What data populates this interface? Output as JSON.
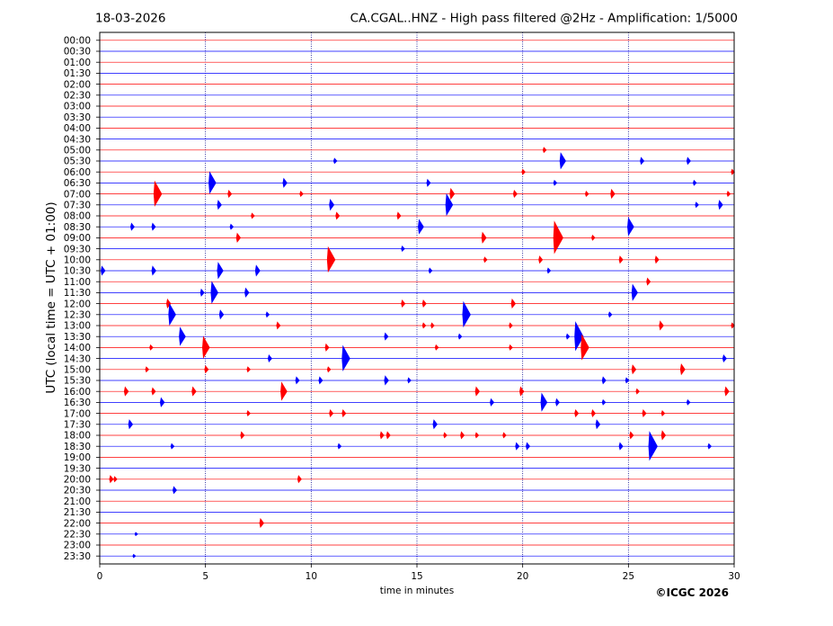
{
  "header": {
    "date": "18-03-2026",
    "station_title": "CA.CGAL..HNZ - High pass filtered @2Hz - Amplification: 1/5000"
  },
  "footer": {
    "copyright": "©ICGC 2026"
  },
  "chart_data": {
    "type": "line",
    "title": "CA.CGAL..HNZ - High pass filtered @2Hz - Amplification: 1/5000",
    "date": "18-03-2026",
    "xlabel": "time in minutes",
    "ylabel": "UTC (local time = UTC + 01:00)",
    "xlim": [
      0,
      30
    ],
    "x_ticks": [
      0,
      5,
      10,
      15,
      20,
      25,
      30
    ],
    "vertical_gridlines_at_minutes": [
      5,
      10,
      15,
      20,
      25
    ],
    "row_labels": [
      "00:00",
      "00:30",
      "01:00",
      "01:30",
      "02:00",
      "02:30",
      "03:00",
      "03:30",
      "04:00",
      "04:30",
      "05:00",
      "05:30",
      "06:00",
      "06:30",
      "07:00",
      "07:30",
      "08:00",
      "08:30",
      "09:00",
      "09:30",
      "10:00",
      "10:30",
      "11:00",
      "11:30",
      "12:00",
      "12:30",
      "13:00",
      "13:30",
      "14:00",
      "14:30",
      "15:00",
      "15:30",
      "16:00",
      "16:30",
      "17:00",
      "17:30",
      "18:00",
      "18:30",
      "19:00",
      "19:30",
      "20:00",
      "20:30",
      "21:00",
      "21:30",
      "22:00",
      "22:30",
      "23:00",
      "23:30"
    ],
    "trace_colors": [
      "#ff0000",
      "#0000ff"
    ],
    "events": [
      {
        "row": "05:00",
        "minute": 21.0,
        "amp": 3
      },
      {
        "row": "05:30",
        "minute": 11.1,
        "amp": 3
      },
      {
        "row": "05:30",
        "minute": 21.8,
        "amp": 9
      },
      {
        "row": "05:30",
        "minute": 25.6,
        "amp": 4
      },
      {
        "row": "05:30",
        "minute": 27.8,
        "amp": 4
      },
      {
        "row": "06:00",
        "minute": 20.0,
        "amp": 3
      },
      {
        "row": "06:00",
        "minute": 29.9,
        "amp": 3
      },
      {
        "row": "06:30",
        "minute": 5.2,
        "amp": 12
      },
      {
        "row": "06:30",
        "minute": 8.7,
        "amp": 5
      },
      {
        "row": "06:30",
        "minute": 15.5,
        "amp": 4
      },
      {
        "row": "06:30",
        "minute": 21.5,
        "amp": 3
      },
      {
        "row": "06:30",
        "minute": 28.1,
        "amp": 3
      },
      {
        "row": "07:00",
        "minute": 2.6,
        "amp": 14
      },
      {
        "row": "07:00",
        "minute": 6.1,
        "amp": 4
      },
      {
        "row": "07:00",
        "minute": 9.5,
        "amp": 3
      },
      {
        "row": "07:00",
        "minute": 16.6,
        "amp": 6
      },
      {
        "row": "07:00",
        "minute": 19.6,
        "amp": 4
      },
      {
        "row": "07:00",
        "minute": 23.0,
        "amp": 3
      },
      {
        "row": "07:00",
        "minute": 24.2,
        "amp": 5
      },
      {
        "row": "07:00",
        "minute": 29.7,
        "amp": 3
      },
      {
        "row": "07:30",
        "minute": 5.6,
        "amp": 5
      },
      {
        "row": "07:30",
        "minute": 10.9,
        "amp": 6
      },
      {
        "row": "07:30",
        "minute": 16.4,
        "amp": 12
      },
      {
        "row": "07:30",
        "minute": 28.2,
        "amp": 3
      },
      {
        "row": "07:30",
        "minute": 29.3,
        "amp": 5
      },
      {
        "row": "08:00",
        "minute": 7.2,
        "amp": 3
      },
      {
        "row": "08:00",
        "minute": 11.2,
        "amp": 4
      },
      {
        "row": "08:00",
        "minute": 14.1,
        "amp": 4
      },
      {
        "row": "08:30",
        "minute": 1.5,
        "amp": 4
      },
      {
        "row": "08:30",
        "minute": 2.5,
        "amp": 4
      },
      {
        "row": "08:30",
        "minute": 6.2,
        "amp": 3
      },
      {
        "row": "08:30",
        "minute": 15.1,
        "amp": 8
      },
      {
        "row": "08:30",
        "minute": 25.0,
        "amp": 10
      },
      {
        "row": "09:00",
        "minute": 6.5,
        "amp": 5
      },
      {
        "row": "09:00",
        "minute": 18.1,
        "amp": 6
      },
      {
        "row": "09:00",
        "minute": 21.5,
        "amp": 18
      },
      {
        "row": "09:00",
        "minute": 23.3,
        "amp": 3
      },
      {
        "row": "09:30",
        "minute": 14.3,
        "amp": 3
      },
      {
        "row": "10:00",
        "minute": 10.8,
        "amp": 14
      },
      {
        "row": "10:00",
        "minute": 18.2,
        "amp": 3
      },
      {
        "row": "10:00",
        "minute": 20.8,
        "amp": 4
      },
      {
        "row": "10:00",
        "minute": 24.6,
        "amp": 4
      },
      {
        "row": "10:00",
        "minute": 26.3,
        "amp": 4
      },
      {
        "row": "10:30",
        "minute": 0.1,
        "amp": 5
      },
      {
        "row": "10:30",
        "minute": 2.5,
        "amp": 5
      },
      {
        "row": "10:30",
        "minute": 5.6,
        "amp": 9
      },
      {
        "row": "10:30",
        "minute": 7.4,
        "amp": 6
      },
      {
        "row": "10:30",
        "minute": 15.6,
        "amp": 3
      },
      {
        "row": "10:30",
        "minute": 21.2,
        "amp": 3
      },
      {
        "row": "11:00",
        "minute": 25.9,
        "amp": 4
      },
      {
        "row": "11:30",
        "minute": 4.8,
        "amp": 4
      },
      {
        "row": "11:30",
        "minute": 5.3,
        "amp": 12
      },
      {
        "row": "11:30",
        "minute": 6.9,
        "amp": 5
      },
      {
        "row": "11:30",
        "minute": 25.2,
        "amp": 9
      },
      {
        "row": "12:00",
        "minute": 3.2,
        "amp": 5
      },
      {
        "row": "12:00",
        "minute": 14.3,
        "amp": 4
      },
      {
        "row": "12:00",
        "minute": 15.3,
        "amp": 4
      },
      {
        "row": "12:00",
        "minute": 19.5,
        "amp": 5
      },
      {
        "row": "12:30",
        "minute": 3.3,
        "amp": 12
      },
      {
        "row": "12:30",
        "minute": 5.7,
        "amp": 5
      },
      {
        "row": "12:30",
        "minute": 7.9,
        "amp": 3
      },
      {
        "row": "12:30",
        "minute": 17.2,
        "amp": 14
      },
      {
        "row": "12:30",
        "minute": 24.1,
        "amp": 3
      },
      {
        "row": "13:00",
        "minute": 8.4,
        "amp": 4
      },
      {
        "row": "13:00",
        "minute": 15.3,
        "amp": 3
      },
      {
        "row": "13:00",
        "minute": 15.7,
        "amp": 3
      },
      {
        "row": "13:00",
        "minute": 19.4,
        "amp": 3
      },
      {
        "row": "13:00",
        "minute": 26.5,
        "amp": 5
      },
      {
        "row": "13:00",
        "minute": 29.9,
        "amp": 3
      },
      {
        "row": "13:30",
        "minute": 3.8,
        "amp": 10
      },
      {
        "row": "13:30",
        "minute": 13.5,
        "amp": 4
      },
      {
        "row": "13:30",
        "minute": 17.0,
        "amp": 3
      },
      {
        "row": "13:30",
        "minute": 22.1,
        "amp": 3
      },
      {
        "row": "13:30",
        "minute": 22.5,
        "amp": 16
      },
      {
        "row": "14:00",
        "minute": 2.4,
        "amp": 3
      },
      {
        "row": "14:00",
        "minute": 4.9,
        "amp": 12
      },
      {
        "row": "14:00",
        "minute": 10.7,
        "amp": 4
      },
      {
        "row": "14:00",
        "minute": 15.9,
        "amp": 3
      },
      {
        "row": "14:00",
        "minute": 19.4,
        "amp": 3
      },
      {
        "row": "14:00",
        "minute": 22.8,
        "amp": 14
      },
      {
        "row": "14:30",
        "minute": 8.0,
        "amp": 4
      },
      {
        "row": "14:30",
        "minute": 11.5,
        "amp": 14
      },
      {
        "row": "14:30",
        "minute": 29.5,
        "amp": 4
      },
      {
        "row": "15:00",
        "minute": 2.2,
        "amp": 3
      },
      {
        "row": "15:00",
        "minute": 5.0,
        "amp": 4
      },
      {
        "row": "15:00",
        "minute": 7.0,
        "amp": 3
      },
      {
        "row": "15:00",
        "minute": 10.8,
        "amp": 3
      },
      {
        "row": "15:00",
        "minute": 25.2,
        "amp": 5
      },
      {
        "row": "15:00",
        "minute": 27.5,
        "amp": 6
      },
      {
        "row": "15:30",
        "minute": 9.3,
        "amp": 4
      },
      {
        "row": "15:30",
        "minute": 10.4,
        "amp": 4
      },
      {
        "row": "15:30",
        "minute": 13.5,
        "amp": 5
      },
      {
        "row": "15:30",
        "minute": 14.6,
        "amp": 3
      },
      {
        "row": "15:30",
        "minute": 23.8,
        "amp": 4
      },
      {
        "row": "15:30",
        "minute": 24.9,
        "amp": 3
      },
      {
        "row": "16:00",
        "minute": 1.2,
        "amp": 5
      },
      {
        "row": "16:00",
        "minute": 2.5,
        "amp": 4
      },
      {
        "row": "16:00",
        "minute": 4.4,
        "amp": 5
      },
      {
        "row": "16:00",
        "minute": 8.6,
        "amp": 10
      },
      {
        "row": "16:00",
        "minute": 17.8,
        "amp": 5
      },
      {
        "row": "16:00",
        "minute": 19.9,
        "amp": 5
      },
      {
        "row": "16:00",
        "minute": 25.4,
        "amp": 3
      },
      {
        "row": "16:00",
        "minute": 29.6,
        "amp": 5
      },
      {
        "row": "16:30",
        "minute": 2.9,
        "amp": 5
      },
      {
        "row": "16:30",
        "minute": 18.5,
        "amp": 4
      },
      {
        "row": "16:30",
        "minute": 20.9,
        "amp": 10
      },
      {
        "row": "16:30",
        "minute": 21.6,
        "amp": 4
      },
      {
        "row": "16:30",
        "minute": 23.8,
        "amp": 3
      },
      {
        "row": "16:30",
        "minute": 27.8,
        "amp": 3
      },
      {
        "row": "17:00",
        "minute": 7.0,
        "amp": 3
      },
      {
        "row": "17:00",
        "minute": 10.9,
        "amp": 4
      },
      {
        "row": "17:00",
        "minute": 11.5,
        "amp": 4
      },
      {
        "row": "17:00",
        "minute": 22.5,
        "amp": 4
      },
      {
        "row": "17:00",
        "minute": 23.3,
        "amp": 4
      },
      {
        "row": "17:00",
        "minute": 25.7,
        "amp": 4
      },
      {
        "row": "17:00",
        "minute": 26.6,
        "amp": 3
      },
      {
        "row": "17:30",
        "minute": 1.4,
        "amp": 5
      },
      {
        "row": "17:30",
        "minute": 15.8,
        "amp": 5
      },
      {
        "row": "17:30",
        "minute": 23.5,
        "amp": 5
      },
      {
        "row": "18:00",
        "minute": 6.7,
        "amp": 4
      },
      {
        "row": "18:00",
        "minute": 13.3,
        "amp": 4
      },
      {
        "row": "18:00",
        "minute": 13.6,
        "amp": 4
      },
      {
        "row": "18:00",
        "minute": 16.3,
        "amp": 3
      },
      {
        "row": "18:00",
        "minute": 17.1,
        "amp": 4
      },
      {
        "row": "18:00",
        "minute": 17.8,
        "amp": 3
      },
      {
        "row": "18:00",
        "minute": 19.1,
        "amp": 3
      },
      {
        "row": "18:00",
        "minute": 25.1,
        "amp": 4
      },
      {
        "row": "18:00",
        "minute": 26.6,
        "amp": 5
      },
      {
        "row": "18:30",
        "minute": 3.4,
        "amp": 3
      },
      {
        "row": "18:30",
        "minute": 11.3,
        "amp": 3
      },
      {
        "row": "18:30",
        "minute": 19.7,
        "amp": 4
      },
      {
        "row": "18:30",
        "minute": 20.2,
        "amp": 4
      },
      {
        "row": "18:30",
        "minute": 24.6,
        "amp": 4
      },
      {
        "row": "18:30",
        "minute": 26.0,
        "amp": 16
      },
      {
        "row": "18:30",
        "minute": 28.8,
        "amp": 3
      },
      {
        "row": "20:00",
        "minute": 0.5,
        "amp": 4
      },
      {
        "row": "20:00",
        "minute": 0.7,
        "amp": 3
      },
      {
        "row": "20:00",
        "minute": 9.4,
        "amp": 4
      },
      {
        "row": "20:30",
        "minute": 3.5,
        "amp": 4
      },
      {
        "row": "22:00",
        "minute": 7.6,
        "amp": 5
      },
      {
        "row": "22:30",
        "minute": 1.7,
        "amp": 2
      },
      {
        "row": "23:30",
        "minute": 1.6,
        "amp": 2
      }
    ]
  }
}
